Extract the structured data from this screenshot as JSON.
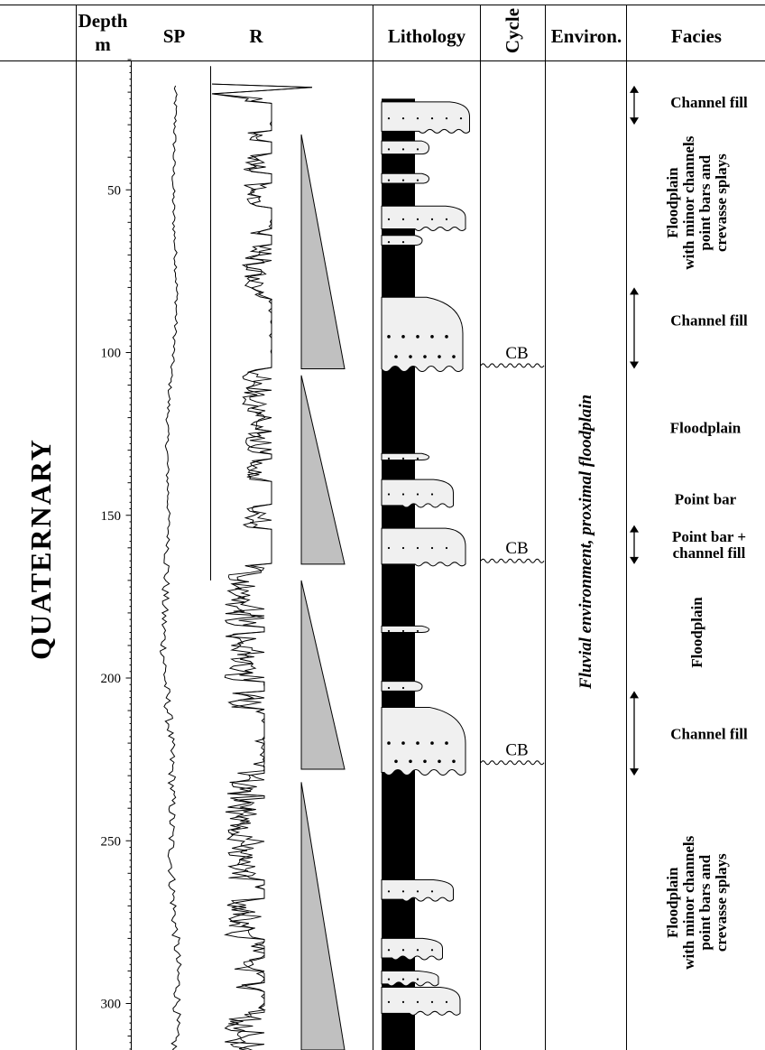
{
  "headers": {
    "depth_line1": "Depth",
    "depth_line2": "m",
    "sp": "SP",
    "r": "R",
    "lithology": "Lithology",
    "cycle": "Cycle",
    "environment": "Environ.",
    "facies": "Facies"
  },
  "era_label": "QUATERNARY",
  "environment_label": "Fluvial environment,  proximal floodplain",
  "depth_axis": {
    "range_m": [
      10,
      322
    ],
    "ticks": [
      50,
      100,
      150,
      200,
      250,
      300
    ]
  },
  "cycle_boundaries": [
    {
      "label": "CB",
      "depth": 104
    },
    {
      "label": "CB",
      "depth": 164
    },
    {
      "label": "CB",
      "depth": 226
    }
  ],
  "fining_upward_triangles": [
    {
      "top": 33,
      "base": 105
    },
    {
      "top": 107,
      "base": 165
    },
    {
      "top": 170,
      "base": 228
    },
    {
      "top": 232,
      "base": 325
    }
  ],
  "sand_bodies": [
    {
      "top": 35,
      "base": 39,
      "extent": 0.35,
      "style": "thin"
    },
    {
      "top": 23,
      "base": 32,
      "extent": 0.65,
      "style": "channel"
    },
    {
      "top": 45,
      "base": 48,
      "extent": 0.35,
      "style": "thin"
    },
    {
      "top": 55,
      "base": 62,
      "extent": 0.62,
      "style": "channel"
    },
    {
      "top": 64,
      "base": 67,
      "extent": 0.3,
      "style": "thin"
    },
    {
      "top": 83,
      "base": 105,
      "extent": 0.6,
      "style": "thick"
    },
    {
      "top": 131,
      "base": 133,
      "extent": 0.35,
      "style": "thin"
    },
    {
      "top": 139,
      "base": 147,
      "extent": 0.53,
      "style": "channel"
    },
    {
      "top": 154,
      "base": 165,
      "extent": 0.62,
      "style": "channel"
    },
    {
      "top": 184,
      "base": 186,
      "extent": 0.35,
      "style": "thin"
    },
    {
      "top": 201,
      "base": 204,
      "extent": 0.3,
      "style": "thin"
    },
    {
      "top": 209,
      "base": 229,
      "extent": 0.62,
      "style": "thick"
    },
    {
      "top": 262,
      "base": 268,
      "extent": 0.53,
      "style": "channel"
    },
    {
      "top": 280,
      "base": 286,
      "extent": 0.45,
      "style": "channel"
    },
    {
      "top": 290,
      "base": 294,
      "extent": 0.42,
      "style": "channel"
    },
    {
      "top": 295,
      "base": 303,
      "extent": 0.58,
      "style": "channel"
    }
  ],
  "facies": [
    {
      "label_lines": [
        "Channel fill"
      ],
      "depth_center": 23,
      "arrow": [
        18,
        30
      ],
      "orientation": "horizontal"
    },
    {
      "label_lines": [
        "Floodplain",
        "with minor channels",
        "point bars and",
        "crevasse splays"
      ],
      "depth_center": 54,
      "orientation": "vertical"
    },
    {
      "label_lines": [
        "Channel fill"
      ],
      "depth_center": 90,
      "arrow": [
        80,
        105
      ],
      "orientation": "horizontal"
    },
    {
      "label_lines": [
        "Floodplain"
      ],
      "depth_center": 123,
      "orientation": "horizontal"
    },
    {
      "label_lines": [
        "Point bar"
      ],
      "depth_center": 145,
      "orientation": "horizontal"
    },
    {
      "label_lines": [
        "Point bar +",
        "channel fill"
      ],
      "depth_center": 159,
      "arrow": [
        153,
        165
      ],
      "orientation": "horizontal"
    },
    {
      "label_lines": [
        "Floodplain"
      ],
      "depth_center": 186,
      "orientation": "vertical"
    },
    {
      "label_lines": [
        "Channel fill"
      ],
      "depth_center": 217,
      "arrow": [
        204,
        230
      ],
      "orientation": "horizontal"
    },
    {
      "label_lines": [
        "Floodplain",
        "with minor channels",
        "point bars and",
        "crevasse splays"
      ],
      "depth_center": 269,
      "orientation": "vertical"
    }
  ],
  "log_curves": {
    "sp": {
      "baseline": 0.55,
      "amplitude": 0.05
    },
    "r": {
      "baseline": 0.3,
      "amplitude": 0.45
    }
  },
  "colors": {
    "ink": "#000000",
    "triangle_fill": "#c0c0c0",
    "sand_fill": "#f0f0f0",
    "shale_fill": "#000000",
    "background": "#ffffff"
  }
}
